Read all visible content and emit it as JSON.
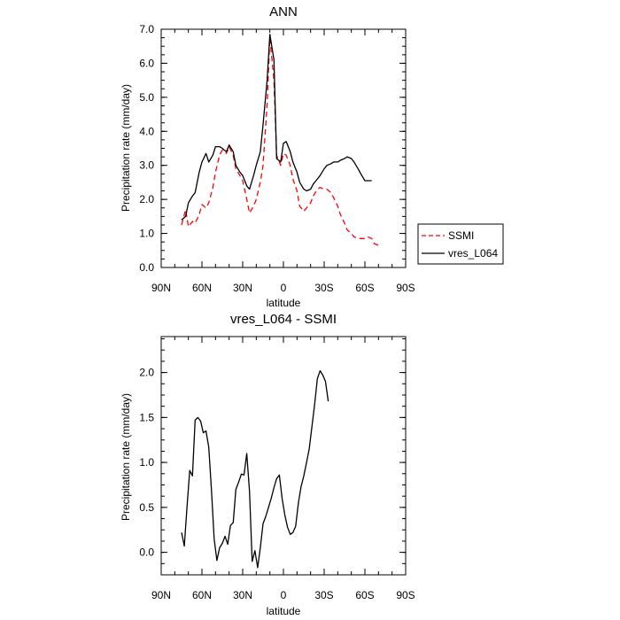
{
  "chart_data": [
    {
      "type": "line",
      "title": "ANN",
      "xlabel": "latitude",
      "ylabel": "Precipitation rate (mm/day)",
      "xlim": [
        -90,
        90
      ],
      "ylim": [
        0,
        7
      ],
      "xticks": [
        -90,
        -60,
        -30,
        0,
        30,
        60,
        90
      ],
      "xtick_labels": [
        "90N",
        "60N",
        "30N",
        "0",
        "30S",
        "60S",
        "90S"
      ],
      "yticks": [
        0,
        1,
        2,
        3,
        4,
        5,
        6,
        7
      ],
      "ytick_labels": [
        "0.0",
        "1.0",
        "2.0",
        "3.0",
        "4.0",
        "5.0",
        "6.0",
        "7.0"
      ],
      "legend_location": "outside-right",
      "series": [
        {
          "name": "SSMI",
          "color": "#ff0000",
          "dash": "dashed",
          "x": [
            -75,
            -72,
            -70,
            -67,
            -65,
            -62,
            -60,
            -57,
            -55,
            -52,
            -50,
            -47,
            -45,
            -42,
            -40,
            -37,
            -35,
            -32,
            -30,
            -27,
            -25,
            -22,
            -20,
            -17,
            -15,
            -12,
            -10,
            -7,
            -5,
            -2,
            0,
            2,
            5,
            7,
            10,
            12,
            15,
            17,
            20,
            22,
            25,
            27,
            30,
            32,
            35,
            37,
            40,
            42,
            45,
            47,
            50,
            52,
            55,
            57,
            60,
            62,
            65,
            67,
            70,
            72
          ],
          "y": [
            1.25,
            1.7,
            1.2,
            1.35,
            1.3,
            1.55,
            1.85,
            1.75,
            1.9,
            2.35,
            2.8,
            3.3,
            3.45,
            3.35,
            3.55,
            3.3,
            2.9,
            2.7,
            2.55,
            2.0,
            1.6,
            1.8,
            2.0,
            2.5,
            3.0,
            4.8,
            6.75,
            5.5,
            3.3,
            3.0,
            3.35,
            3.3,
            3.0,
            2.6,
            2.25,
            1.8,
            1.65,
            1.75,
            1.9,
            2.1,
            2.3,
            2.35,
            2.3,
            2.3,
            2.2,
            2.05,
            1.8,
            1.55,
            1.3,
            1.1,
            1.0,
            0.9,
            0.85,
            0.85,
            0.85,
            0.9,
            0.85,
            0.7,
            0.65,
            0.6
          ]
        },
        {
          "name": "vres_L064",
          "color": "#000000",
          "dash": "solid",
          "x": [
            -75,
            -72,
            -70,
            -67,
            -65,
            -62,
            -60,
            -57,
            -55,
            -52,
            -50,
            -47,
            -45,
            -42,
            -40,
            -37,
            -35,
            -32,
            -30,
            -27,
            -25,
            -22,
            -20,
            -17,
            -15,
            -12,
            -10,
            -7,
            -5,
            -2,
            0,
            2,
            5,
            7,
            10,
            12,
            15,
            17,
            20,
            22,
            25,
            27,
            30,
            32,
            35,
            37,
            40,
            42,
            45,
            47,
            50,
            52,
            55,
            57,
            60,
            62,
            65
          ],
          "y": [
            1.4,
            1.5,
            1.9,
            2.1,
            2.2,
            2.8,
            3.1,
            3.35,
            3.1,
            3.3,
            3.55,
            3.55,
            3.5,
            3.4,
            3.6,
            3.4,
            3.0,
            2.8,
            2.7,
            2.4,
            2.3,
            2.7,
            3.0,
            3.4,
            4.2,
            5.5,
            6.85,
            6.1,
            3.2,
            3.1,
            3.65,
            3.7,
            3.4,
            3.1,
            2.8,
            2.5,
            2.3,
            2.25,
            2.3,
            2.45,
            2.6,
            2.7,
            2.9,
            3.0,
            3.05,
            3.1,
            3.1,
            3.15,
            3.2,
            3.25,
            3.2,
            3.1,
            2.9,
            2.75,
            2.55,
            2.55,
            2.55
          ]
        }
      ]
    },
    {
      "type": "line",
      "title": "vres_L064 - SSMI",
      "xlabel": "latitude",
      "ylabel": "Precipitation rate (mm/day)",
      "xlim": [
        -90,
        90
      ],
      "ylim": [
        -0.25,
        2.4
      ],
      "xticks": [
        -90,
        -60,
        -30,
        0,
        30,
        60,
        90
      ],
      "xtick_labels": [
        "90N",
        "60N",
        "30N",
        "0",
        "30S",
        "60S",
        "90S"
      ],
      "yticks": [
        0,
        0.5,
        1,
        1.5,
        2
      ],
      "ytick_labels": [
        "0.0",
        "0.5",
        "1.0",
        "1.5",
        "2.0"
      ],
      "series": [
        {
          "name": "vres_L064 - SSMI",
          "color": "#000000",
          "dash": "solid",
          "x": [
            -75,
            -73,
            -71,
            -69,
            -67,
            -65,
            -63,
            -61,
            -59,
            -57,
            -55,
            -53,
            -51,
            -49,
            -47,
            -45,
            -43,
            -41,
            -39,
            -37,
            -35,
            -33,
            -31,
            -29,
            -27,
            -25,
            -23,
            -21,
            -19,
            -17,
            -15,
            -13,
            -11,
            -9,
            -7,
            -5,
            -3,
            -1,
            1,
            3,
            5,
            7,
            9,
            11,
            13,
            15,
            17,
            19,
            21,
            23,
            25,
            27,
            29,
            31,
            33,
            35,
            37,
            39,
            41,
            43,
            45,
            47,
            49,
            51,
            53,
            55,
            57,
            59,
            61,
            63,
            65
          ],
          "y": [
            0.22,
            0.07,
            0.5,
            0.91,
            0.85,
            1.47,
            1.5,
            1.46,
            1.33,
            1.35,
            1.17,
            0.7,
            0.15,
            -0.09,
            0.05,
            0.1,
            0.18,
            0.09,
            0.3,
            0.33,
            0.7,
            0.78,
            0.87,
            0.86,
            1.1,
            0.68,
            -0.1,
            0.02,
            -0.17,
            0.05,
            0.32,
            0.4,
            0.5,
            0.6,
            0.72,
            0.82,
            0.86,
            0.6,
            0.42,
            0.28,
            0.2,
            0.22,
            0.29,
            0.55,
            0.73,
            0.85,
            1.0,
            1.15,
            1.4,
            1.65,
            1.93,
            2.02,
            1.97,
            1.9,
            1.68,
            null,
            null,
            null,
            null,
            null,
            null,
            null,
            null,
            null,
            null,
            null,
            null,
            null,
            null,
            null,
            null
          ]
        }
      ]
    }
  ],
  "legend": {
    "entries": [
      {
        "name": "SSMI"
      },
      {
        "name": "vres_L064"
      }
    ]
  }
}
